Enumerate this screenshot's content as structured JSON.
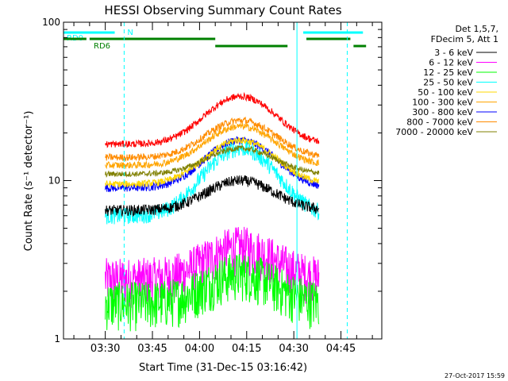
{
  "chart_data": {
    "type": "line",
    "title": "HESSI Observing Summary Count Rates",
    "xlabel": "Start Time (31-Dec-15 03:16:42)",
    "ylabel": "Count Rate (s⁻¹ detector⁻¹)",
    "y_scale": "log",
    "ylim": [
      1,
      100
    ],
    "y_ticks": [
      1,
      10,
      100
    ],
    "y_tick_labels": [
      "1",
      "10",
      "100"
    ],
    "xlim": [
      "03:16:42",
      "04:58:00"
    ],
    "x_ticks": [
      "03:30",
      "03:45",
      "04:00",
      "04:15",
      "04:30",
      "04:45"
    ],
    "data_start": "03:30",
    "data_end": "04:38",
    "legend_header": [
      "Det 1,5,7,",
      "FDecim 5, Att 1"
    ],
    "legend_position": "right",
    "footer_date": "27-Oct-2017 15:59",
    "flags": [
      {
        "label": "RD0",
        "color": "#00ffff",
        "segments": [
          [
            "03:16:42",
            "03:33"
          ],
          [
            "04:33",
            "04:52"
          ]
        ]
      },
      {
        "label": "RD6",
        "color": "#008000",
        "segments": [
          [
            "03:16:42",
            "03:24"
          ],
          [
            "03:25",
            "04:05"
          ],
          [
            "04:34",
            "04:48"
          ]
        ]
      },
      {
        "label": "RD6",
        "color": "#008000",
        "segments": [
          [
            "04:05",
            "04:28"
          ],
          [
            "04:49",
            "04:53"
          ]
        ]
      },
      {
        "label": "N",
        "color": "#00ffff",
        "segments": [
          [
            "03:36",
            "03:36"
          ]
        ]
      }
    ],
    "vlines": [
      {
        "time": "03:36",
        "color": "#00ffff",
        "style": "dashed"
      },
      {
        "time": "04:31",
        "color": "#00ffff",
        "style": "solid"
      },
      {
        "time": "04:47",
        "color": "#00ffff",
        "style": "dashed"
      }
    ],
    "series": [
      {
        "name": "3 - 6 keV",
        "color": "#000000",
        "base": 6.5,
        "peak": 10.0,
        "noise": 0.08
      },
      {
        "name": "6 - 12 keV",
        "color": "#ff00ff",
        "base": 2.4,
        "peak": 3.8,
        "noise": 0.35
      },
      {
        "name": "12 - 25 keV",
        "color": "#00ff00",
        "base": 1.7,
        "peak": 2.6,
        "noise": 0.35
      },
      {
        "name": "25 - 50 keV",
        "color": "#00ffff",
        "base": 6.0,
        "peak": 16.0,
        "noise": 0.12
      },
      {
        "name": "50 - 100 keV",
        "color": "#ffd700",
        "base": 9.5,
        "peak": 18.0,
        "noise": 0.05
      },
      {
        "name": "100 - 300 keV",
        "color": "#ffa500",
        "base": 12.5,
        "peak": 22.0,
        "noise": 0.05
      },
      {
        "name": "300 - 800 keV",
        "color": "#0000ff",
        "base": 9.0,
        "peak": 18.0,
        "noise": 0.06
      },
      {
        "name": "800 - 7000 keV",
        "color": "#ff8c00",
        "base": 14.0,
        "peak": 24.0,
        "noise": 0.05
      },
      {
        "name": "7000 - 20000 keV",
        "color": "#808000",
        "base": 11.0,
        "peak": 16.0,
        "noise": 0.04
      },
      {
        "name": "",
        "color": "#ff0000",
        "base": 17.0,
        "peak": 34.0,
        "noise": 0.05
      }
    ],
    "flare_peak_time": "04:13",
    "flare_width_min": 14
  }
}
